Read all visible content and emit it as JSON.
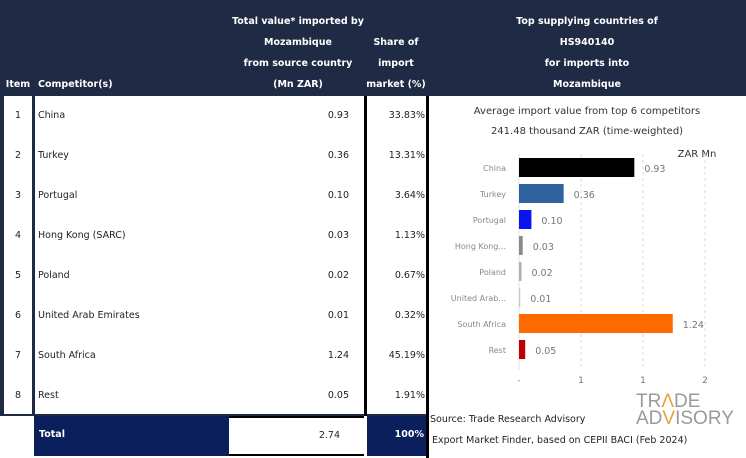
{
  "table": {
    "headers": {
      "item": "Item",
      "competitor": "Competitor(s)",
      "value_lines": [
        "Total value* imported by",
        "Mozambique",
        "from source country",
        "(Mn ZAR)"
      ],
      "share_lines": [
        "Share of",
        "import",
        "market (%)"
      ]
    },
    "rows": [
      {
        "item": "1",
        "name": "China",
        "value": "0.93",
        "share": "33.83%"
      },
      {
        "item": "2",
        "name": "Turkey",
        "value": "0.36",
        "share": "13.31%"
      },
      {
        "item": "3",
        "name": "Portugal",
        "value": "0.10",
        "share": "3.64%"
      },
      {
        "item": "4",
        "name": "Hong Kong (SARC)",
        "value": "0.03",
        "share": "1.13%"
      },
      {
        "item": "5",
        "name": "Poland",
        "value": "0.02",
        "share": "0.67%"
      },
      {
        "item": "6",
        "name": "United Arab Emirates",
        "value": "0.01",
        "share": "0.32%"
      },
      {
        "item": "7",
        "name": "South Africa",
        "value": "1.24",
        "share": "45.19%"
      },
      {
        "item": "8",
        "name": "Rest",
        "value": "0.05",
        "share": "1.91%"
      }
    ],
    "total": {
      "label": "Total",
      "value": "2.74",
      "share": "100%"
    }
  },
  "panel": {
    "header_lines": [
      "Top supplying countries of",
      "HS940140",
      "for imports into",
      "Mozambique"
    ],
    "source": "Source: Trade Research Advisory",
    "source2": "Export Market Finder, based on CEPII BACI (Feb 2024)",
    "logo": {
      "line1_pre": "TR",
      "line1_a": "Λ",
      "line1_post": "DE",
      "line2_pre": "AD",
      "line2_a": "V",
      "line2_post": "ISORY"
    }
  },
  "chart_data": {
    "type": "bar",
    "orientation": "horizontal",
    "title": "Average import value from top 6 competitors",
    "subtitle": "241.48 thousand ZAR (time-weighted)",
    "unit_label": "ZAR Mn",
    "categories": [
      "China",
      "Turkey",
      "Portugal",
      "Hong Kong...",
      "Poland",
      "United Arab...",
      "South Africa",
      "Rest"
    ],
    "values": [
      0.93,
      0.36,
      0.1,
      0.03,
      0.02,
      0.01,
      1.24,
      0.05
    ],
    "value_labels": [
      "0.93",
      "0.36",
      "0.10",
      "0.03",
      "0.02",
      "0.01",
      "1.24",
      "0.05"
    ],
    "colors": [
      "#000000",
      "#2e63a0",
      "#0a14f0",
      "#8a8a8a",
      "#b0b0b0",
      "#c8c8c8",
      "#ff6a00",
      "#c00000"
    ],
    "x_ticks": [
      0,
      0.5,
      1,
      1.5
    ],
    "x_tick_labels": [
      "-",
      "1",
      "1",
      "2"
    ],
    "xlim": [
      0,
      1.5
    ],
    "grid": true,
    "legend": "none"
  }
}
